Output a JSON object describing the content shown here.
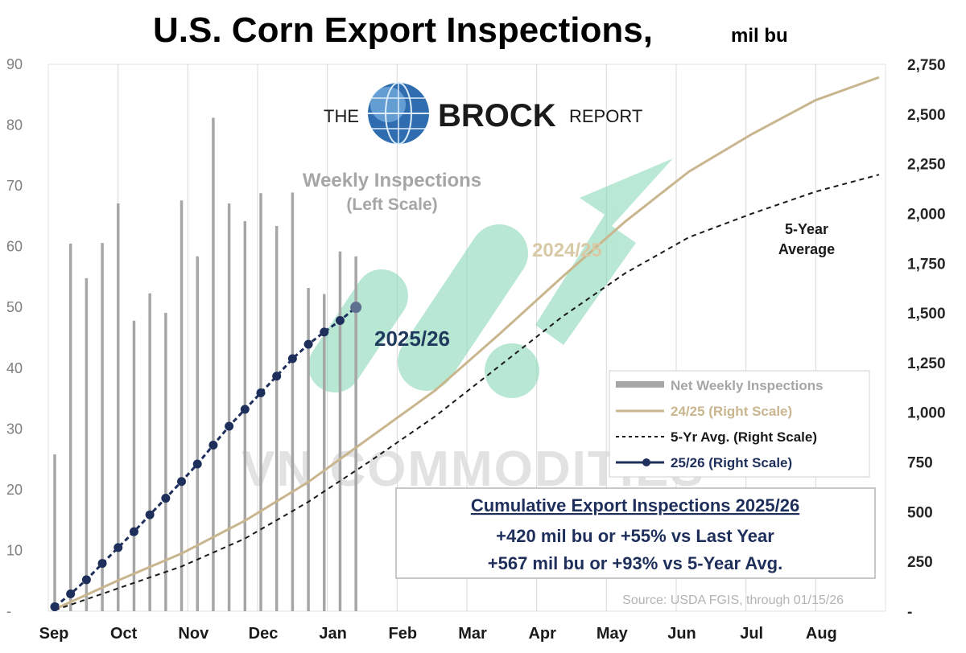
{
  "chart_data": {
    "type": "bar+line",
    "title": "U.S. Corn Export Inspections,",
    "title_unit": "mil bu",
    "x_labels": [
      "Sep",
      "Oct",
      "Nov",
      "Dec",
      "Jan",
      "Feb",
      "Mar",
      "Apr",
      "May",
      "Jun",
      "Jul",
      "Aug"
    ],
    "left_axis": {
      "ticks": [
        "90",
        "80",
        "70",
        "60",
        "50",
        "40",
        "30",
        "20",
        "10",
        "-"
      ],
      "range": [
        0,
        90
      ]
    },
    "right_axis": {
      "ticks": [
        "2,750",
        "2,500",
        "2,250",
        "2,000",
        "1,750",
        "1,500",
        "1,250",
        "1,000",
        "750",
        "500",
        "250",
        "-"
      ],
      "range": [
        0,
        2750
      ]
    },
    "weekly_inspections": {
      "name": "Net Weekly Inspections",
      "week_index": [
        0,
        1,
        2,
        3,
        4,
        5,
        6,
        7,
        8,
        9,
        10,
        11,
        12,
        13,
        14,
        15,
        16,
        17,
        18,
        19
      ],
      "values": [
        25.8,
        60.5,
        54.8,
        60.6,
        67.1,
        47.8,
        52.3,
        49.1,
        67.6,
        58.4,
        81.2,
        67.1,
        64.2,
        68.8,
        63.4,
        68.9,
        53.2,
        52.2,
        59.2,
        58.4
      ]
    },
    "series": [
      {
        "name": "24/25 (Right Scale)",
        "label": "2024/25",
        "color": "#c9b68f",
        "week_index": [
          0,
          4,
          8,
          12,
          16,
          20,
          24,
          28,
          32,
          36,
          40,
          44,
          48,
          52
        ],
        "values": [
          10,
          155,
          290,
          455,
          650,
          880,
          1110,
          1390,
          1680,
          1960,
          2210,
          2400,
          2570,
          2685
        ]
      },
      {
        "name": "5-Yr Avg. (Right Scale)",
        "label": "5-Year Average",
        "color": "#1a1a1a",
        "week_index": [
          0,
          4,
          8,
          12,
          16,
          20,
          24,
          28,
          32,
          36,
          40,
          44,
          48,
          52
        ],
        "values": [
          5,
          115,
          225,
          365,
          550,
          760,
          980,
          1230,
          1480,
          1700,
          1880,
          2000,
          2110,
          2195
        ]
      },
      {
        "name": "25/26 (Right Scale)",
        "label": "2025/26",
        "color": "#1f2f5c",
        "week_index": [
          0,
          1,
          2,
          3,
          4,
          5,
          6,
          7,
          8,
          9,
          10,
          11,
          12,
          13,
          14,
          15,
          16,
          17,
          18,
          19
        ],
        "values": [
          22,
          87,
          158,
          240,
          320,
          400,
          485,
          568,
          652,
          740,
          835,
          930,
          1015,
          1098,
          1182,
          1270,
          1342,
          1404,
          1462,
          1528
        ]
      }
    ],
    "legend": [
      {
        "label": "Net Weekly Inspections",
        "kind": "bar",
        "color": "#a6a6a6"
      },
      {
        "label": "24/25 (Right Scale)",
        "kind": "line",
        "color": "#c9b68f"
      },
      {
        "label": "5-Yr Avg. (Right Scale)",
        "kind": "dashed",
        "color": "#1a1a1a"
      },
      {
        "label": "25/26 (Right Scale)",
        "kind": "marker-line",
        "color": "#1f2f5c"
      }
    ],
    "annotations": {
      "weekly_title": "Weekly Inspections",
      "weekly_sub": "(Left Scale)",
      "label_2024": "2024/25",
      "label_2025": "2025/26",
      "five_year_line1": "5-Year",
      "five_year_line2": "Average"
    }
  },
  "brand": {
    "the": "THE",
    "brock": "BROCK",
    "report": "REPORT"
  },
  "watermark": "VN COMMODITIES",
  "summary_box": {
    "title": "Cumulative Export Inspections 2025/26",
    "line1": "+420 mil bu or +55% vs Last Year",
    "line2": "+567 mil bu or +93% vs 5-Year Avg."
  },
  "source": "Source: USDA FGIS, through 01/15/26",
  "colors": {
    "bar": "#a6a6a6",
    "grid": "#d9d9d9",
    "arrow": "#7fd6b2",
    "navy": "#1f2f5c",
    "tan": "#c9b68f"
  }
}
